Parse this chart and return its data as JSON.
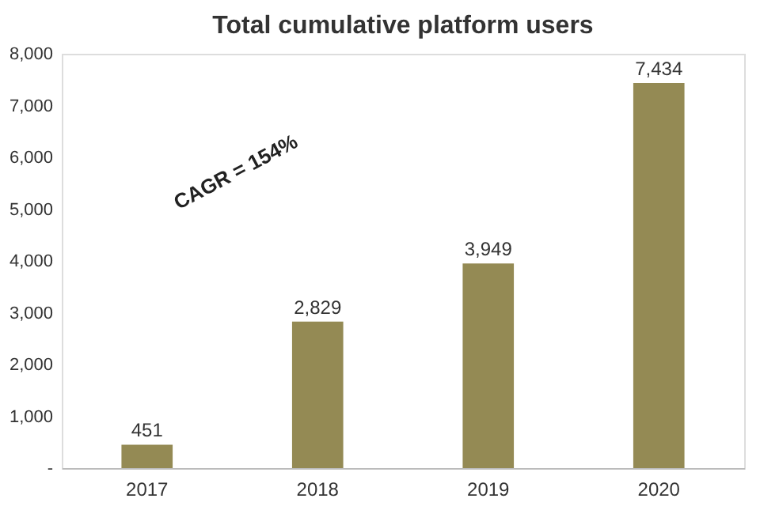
{
  "chart_data": {
    "type": "bar",
    "title": "Total cumulative platform users",
    "categories": [
      "2017",
      "2018",
      "2019",
      "2020"
    ],
    "values": [
      451,
      2829,
      3949,
      7434
    ],
    "color": "#948a54",
    "ylim": [
      0,
      8000
    ],
    "yticks": [
      {
        "value": 0,
        "label": "-"
      },
      {
        "value": 1000,
        "label": "1,000"
      },
      {
        "value": 2000,
        "label": "2,000"
      },
      {
        "value": 3000,
        "label": "3,000"
      },
      {
        "value": 4000,
        "label": "4,000"
      },
      {
        "value": 5000,
        "label": "5,000"
      },
      {
        "value": 6000,
        "label": "6,000"
      },
      {
        "value": 7000,
        "label": "7,000"
      },
      {
        "value": 8000,
        "label": "8,000"
      }
    ],
    "value_labels": [
      "451",
      "2,829",
      "3,949",
      "7,434"
    ],
    "annotations": [
      "CAGR = 154%"
    ],
    "grid": false
  }
}
